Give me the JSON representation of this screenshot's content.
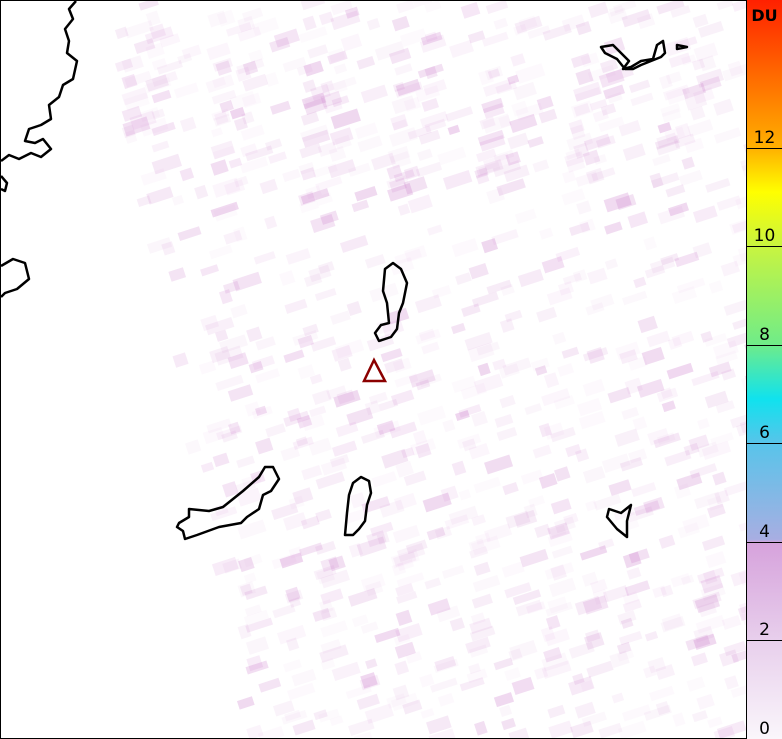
{
  "map": {
    "marker": {
      "shape": "triangle",
      "color": "#8b0000"
    },
    "coastline_color": "#000000",
    "pixel_color": "#c060c0"
  },
  "colorbar": {
    "unit": "DU",
    "range": [
      0,
      15
    ],
    "ticks": [
      "0",
      "2",
      "4",
      "6",
      "8",
      "10",
      "12"
    ],
    "tick_values": [
      0,
      2,
      4,
      6,
      8,
      10,
      12
    ],
    "colors": [
      "#faf6fb",
      "#e8cfec",
      "#d6a2dc",
      "#a8aee2",
      "#58c4ea",
      "#10e2ee",
      "#70ec88",
      "#c8f440",
      "#ffff00",
      "#ffb000",
      "#ff2000"
    ]
  }
}
